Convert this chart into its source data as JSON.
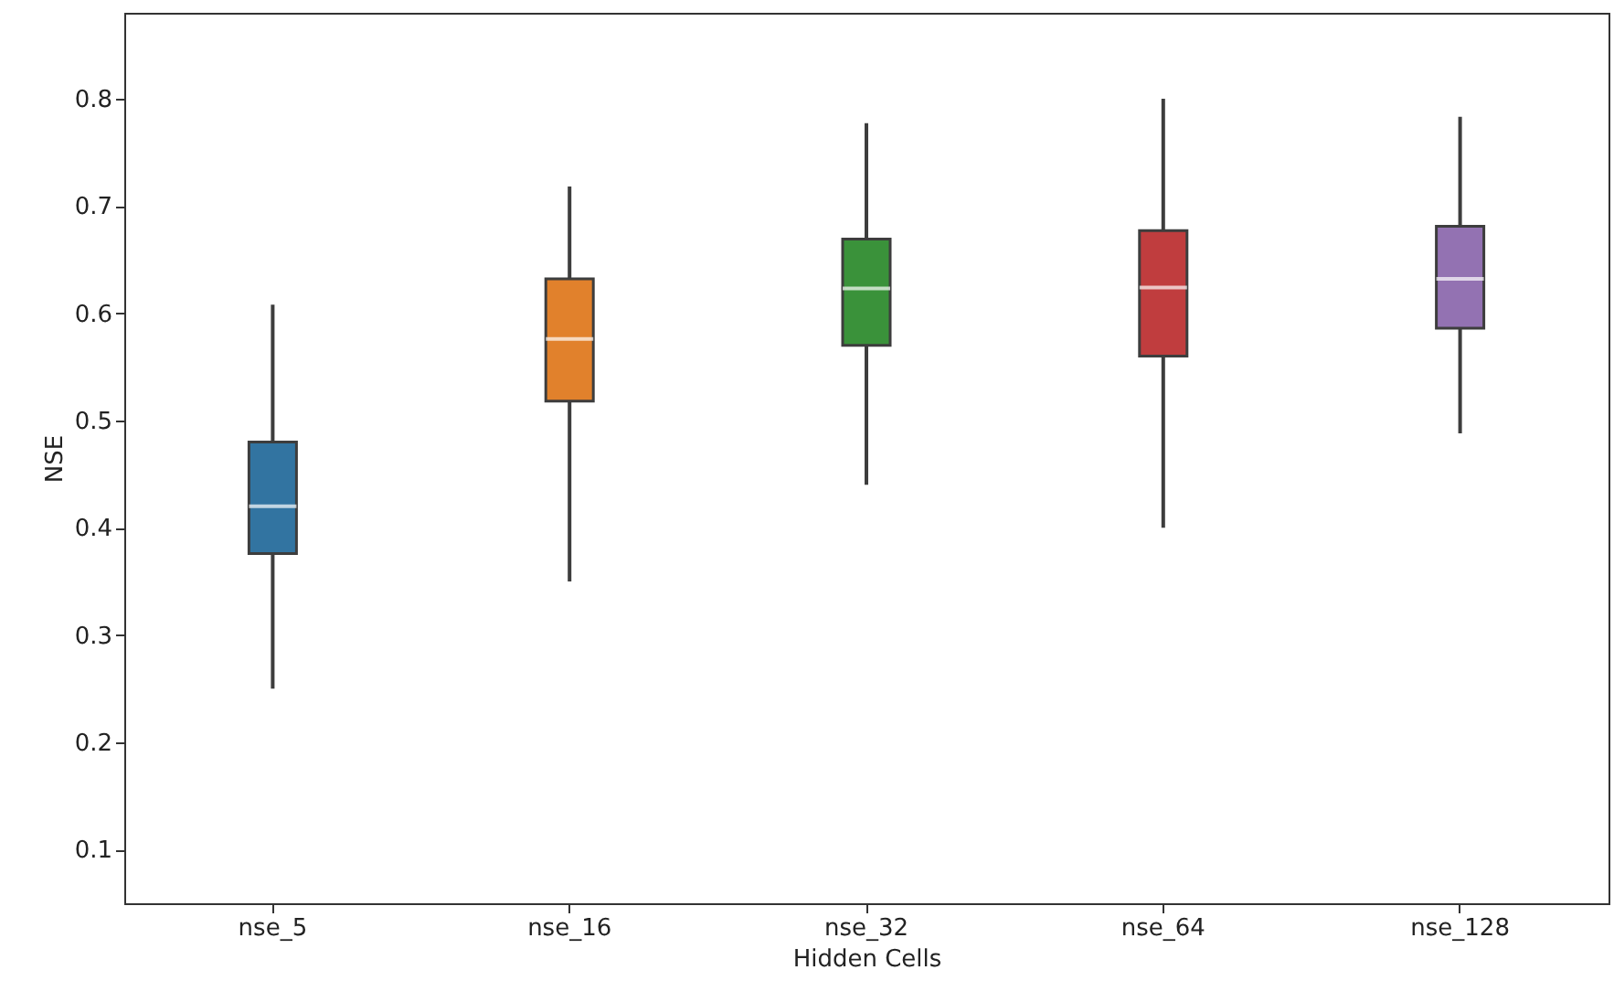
{
  "chart_data": {
    "type": "box",
    "xlabel": "Hidden Cells",
    "ylabel": "NSE",
    "categories": [
      "nse_5",
      "nse_16",
      "nse_32",
      "nse_64",
      "nse_128"
    ],
    "colors": [
      "#3274a1",
      "#e1812c",
      "#3a923a",
      "#c03d3e",
      "#9372b2"
    ],
    "boxes": [
      {
        "low": 0.25,
        "q1": 0.376,
        "median": 0.42,
        "q3": 0.48,
        "high": 0.608
      },
      {
        "low": 0.35,
        "q1": 0.518,
        "median": 0.576,
        "q3": 0.632,
        "high": 0.718
      },
      {
        "low": 0.44,
        "q1": 0.57,
        "median": 0.623,
        "q3": 0.669,
        "high": 0.777
      },
      {
        "low": 0.4,
        "q1": 0.56,
        "median": 0.624,
        "q3": 0.677,
        "high": 0.8
      },
      {
        "low": 0.488,
        "q1": 0.586,
        "median": 0.632,
        "q3": 0.681,
        "high": 0.783
      }
    ],
    "ylim": [
      0.05,
      0.88
    ],
    "yticks": [
      0.1,
      0.2,
      0.3,
      0.4,
      0.5,
      0.6,
      0.7,
      0.8
    ],
    "grid": false
  }
}
